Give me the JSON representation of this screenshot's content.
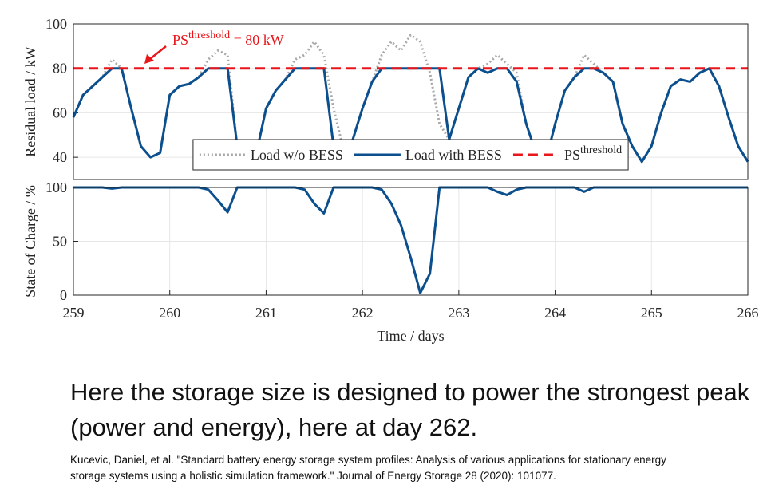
{
  "chart_data": [
    {
      "type": "line",
      "ylabel": "Residual load / kW",
      "xlim": [
        259,
        266
      ],
      "ylim": [
        30,
        100
      ],
      "yticks": [
        40,
        60,
        80,
        100
      ],
      "grid": true,
      "legend": "lower center",
      "x": [
        259.0,
        259.1,
        259.2,
        259.3,
        259.4,
        259.5,
        259.6,
        259.7,
        259.8,
        259.9,
        260.0,
        260.1,
        260.2,
        260.3,
        260.4,
        260.5,
        260.6,
        260.7,
        260.8,
        260.9,
        261.0,
        261.1,
        261.2,
        261.3,
        261.4,
        261.5,
        261.6,
        261.7,
        261.8,
        261.9,
        262.0,
        262.1,
        262.2,
        262.3,
        262.4,
        262.5,
        262.6,
        262.7,
        262.8,
        262.9,
        263.0,
        263.1,
        263.2,
        263.3,
        263.4,
        263.5,
        263.6,
        263.7,
        263.8,
        263.9,
        264.0,
        264.1,
        264.2,
        264.3,
        264.4,
        264.5,
        264.6,
        264.7,
        264.8,
        264.9,
        265.0,
        265.1,
        265.2,
        265.3,
        265.4,
        265.5,
        265.6,
        265.7,
        265.8,
        265.9,
        266.0
      ],
      "series": [
        {
          "name": "Load w/o BESS",
          "color": "#a9a9a9",
          "style": "dotted",
          "values": [
            58,
            68,
            72,
            76,
            84,
            80,
            62,
            45,
            40,
            42,
            68,
            72,
            73,
            76,
            84,
            88,
            86,
            45,
            40,
            42,
            62,
            70,
            75,
            84,
            86,
            92,
            86,
            62,
            44,
            48,
            62,
            74,
            86,
            92,
            88,
            95,
            92,
            78,
            55,
            48,
            62,
            76,
            80,
            82,
            86,
            82,
            78,
            55,
            42,
            38,
            55,
            70,
            76,
            86,
            82,
            78,
            74,
            55,
            45,
            38,
            45,
            60,
            72,
            75,
            74,
            78,
            80,
            72,
            58,
            45,
            38
          ]
        },
        {
          "name": "Load with BESS",
          "color": "#0b4f8e",
          "style": "solid",
          "values": [
            58,
            68,
            72,
            76,
            80,
            80,
            62,
            45,
            40,
            42,
            68,
            72,
            73,
            76,
            80,
            80,
            80,
            45,
            40,
            42,
            62,
            70,
            75,
            80,
            80,
            80,
            80,
            45,
            44,
            48,
            62,
            74,
            80,
            80,
            80,
            80,
            80,
            80,
            80,
            48,
            62,
            76,
            80,
            78,
            80,
            80,
            74,
            55,
            42,
            38,
            55,
            70,
            76,
            80,
            80,
            78,
            74,
            55,
            45,
            38,
            45,
            60,
            72,
            75,
            74,
            78,
            80,
            72,
            58,
            45,
            38
          ]
        }
      ],
      "hlines": [
        {
          "name": "PS",
          "name_sup": "threshold",
          "value": 80,
          "color": "#e8161a",
          "style": "dashed"
        }
      ],
      "annotation": {
        "text": "PS",
        "sup": "threshold",
        "rest": " = 80 kW",
        "color": "#e8161a"
      }
    },
    {
      "type": "line",
      "ylabel": "State of Charge / %",
      "xlabel": "Time / days",
      "xlim": [
        259,
        266
      ],
      "ylim": [
        0,
        100
      ],
      "yticks": [
        0,
        50,
        100
      ],
      "xticks": [
        259,
        260,
        261,
        262,
        263,
        264,
        265,
        266
      ],
      "grid": true,
      "x": [
        259.0,
        259.1,
        259.2,
        259.3,
        259.4,
        259.5,
        259.6,
        259.7,
        259.8,
        259.9,
        260.0,
        260.1,
        260.2,
        260.3,
        260.4,
        260.5,
        260.6,
        260.7,
        260.8,
        260.9,
        261.0,
        261.1,
        261.2,
        261.3,
        261.4,
        261.5,
        261.6,
        261.7,
        261.8,
        261.9,
        262.0,
        262.1,
        262.2,
        262.3,
        262.4,
        262.5,
        262.6,
        262.7,
        262.8,
        262.9,
        263.0,
        263.1,
        263.2,
        263.3,
        263.4,
        263.5,
        263.6,
        263.7,
        263.8,
        263.9,
        264.0,
        264.1,
        264.2,
        264.3,
        264.4,
        264.5,
        264.6,
        264.7,
        264.8,
        264.9,
        265.0,
        265.1,
        265.2,
        265.3,
        265.4,
        265.5,
        265.6,
        265.7,
        265.8,
        265.9,
        266.0
      ],
      "series": [
        {
          "name": "State of Charge",
          "color": "#0b4f8e",
          "style": "solid",
          "values": [
            100,
            100,
            100,
            100,
            99,
            100,
            100,
            100,
            100,
            100,
            100,
            100,
            100,
            100,
            98,
            88,
            77,
            100,
            100,
            100,
            100,
            100,
            100,
            100,
            98,
            85,
            76,
            100,
            100,
            100,
            100,
            100,
            98,
            85,
            65,
            35,
            2,
            20,
            100,
            100,
            100,
            100,
            100,
            100,
            96,
            93,
            98,
            100,
            100,
            100,
            100,
            100,
            100,
            96,
            100,
            100,
            100,
            100,
            100,
            100,
            100,
            100,
            100,
            100,
            100,
            100,
            100,
            100,
            100,
            100,
            100
          ]
        }
      ]
    }
  ],
  "caption": "Here the storage size is designed to power the strongest peak (power and energy), here at day 262.",
  "citation": "Kucevic, Daniel, et al. \"Standard battery energy storage system profiles: Analysis of various applications for stationary energy storage systems using a holistic simulation framework.\" Journal of Energy Storage 28 (2020): 101077."
}
